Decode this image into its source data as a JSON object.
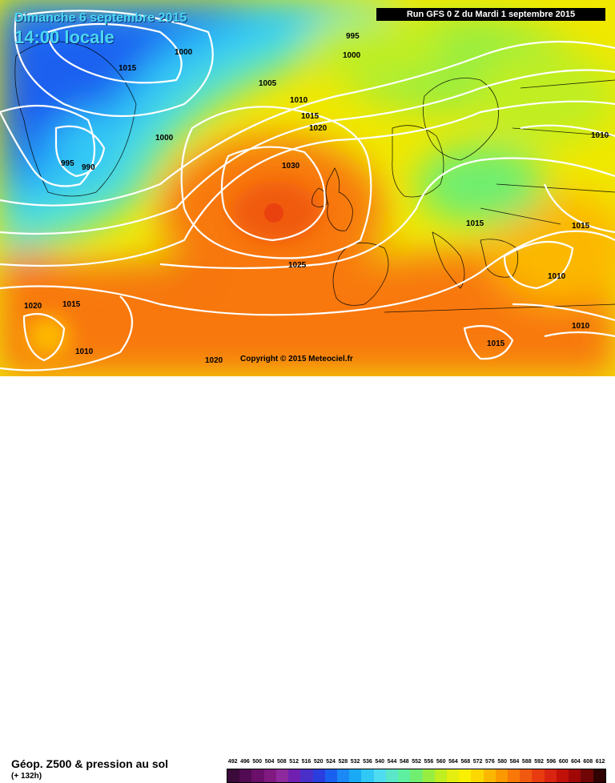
{
  "header": {
    "date": "Dimanche 6 septembre 2015",
    "time": "14:00 locale",
    "run": "Run GFS 0 Z du Mardi 1 septembre 2015"
  },
  "copyright": "Copyright © 2015 Meteociel.fr",
  "isobar_labels": [
    "995",
    "1000",
    "1015",
    "1000",
    "1005",
    "1010",
    "1015",
    "1020",
    "1000",
    "995",
    "990",
    "1030",
    "1025",
    "1010",
    "1015",
    "1015",
    "1010",
    "1010",
    "1020",
    "1015",
    "1010",
    "1020",
    "1015"
  ],
  "legend": {
    "title": "Géop. Z500 & pression au sol",
    "subtitle": "(+ 132h)",
    "values": [
      "492",
      "496",
      "500",
      "504",
      "508",
      "512",
      "516",
      "520",
      "524",
      "528",
      "532",
      "536",
      "540",
      "544",
      "548",
      "552",
      "556",
      "560",
      "564",
      "568",
      "572",
      "576",
      "580",
      "584",
      "588",
      "592",
      "596",
      "600",
      "604",
      "608",
      "612"
    ],
    "colors": [
      "#3a0a3a",
      "#520a52",
      "#6a0f6a",
      "#801a80",
      "#8e2a9e",
      "#7020b0",
      "#4a2ec8",
      "#2a3ee0",
      "#1a60f0",
      "#1a88f5",
      "#1aaaf5",
      "#30c8f5",
      "#50dcf0",
      "#5ae6c8",
      "#5ef0a0",
      "#70ee70",
      "#98ee40",
      "#c0ee20",
      "#e4ee10",
      "#f8f000",
      "#fcd800",
      "#fcb800",
      "#fc9800",
      "#f87808",
      "#f05a10",
      "#e83c10",
      "#d82410",
      "#c01008",
      "#a00808",
      "#700606",
      "#300202"
    ]
  }
}
